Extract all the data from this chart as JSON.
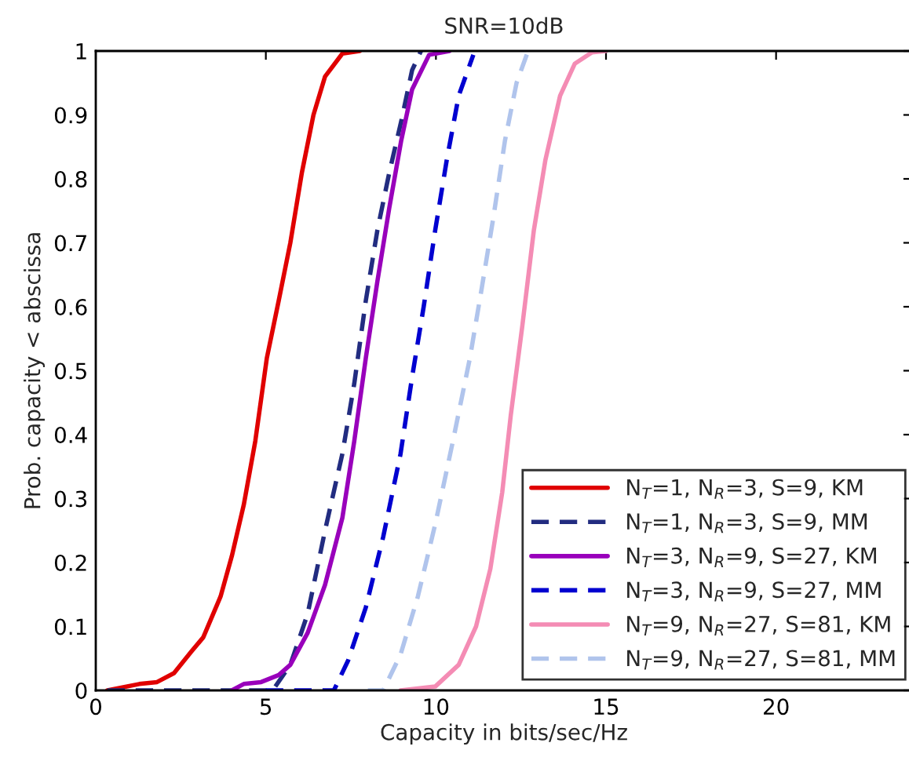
{
  "chart_data": {
    "type": "line",
    "title": "SNR=10dB",
    "xlabel": "Capacity in bits/sec/Hz",
    "ylabel": "Prob. capacity < abscissa",
    "xlim": [
      0,
      24
    ],
    "ylim": [
      0,
      1
    ],
    "xticks": [
      0,
      5,
      10,
      15,
      20
    ],
    "yticks": [
      0,
      {
        "value": 0.1,
        "label": "0.1"
      },
      {
        "value": 0.2,
        "label": "0.2"
      },
      {
        "value": 0.3,
        "label": "0.3"
      },
      {
        "value": 0.4,
        "label": "0.4"
      },
      {
        "value": 0.5,
        "label": "0.5"
      },
      {
        "value": 0.6,
        "label": "0.6"
      },
      {
        "value": 0.7,
        "label": "0.7"
      },
      {
        "value": 0.8,
        "label": "0.8"
      },
      {
        "value": 0.9,
        "label": "0.9"
      },
      1
    ],
    "grid": false,
    "legend": "bottom right",
    "marker": "none",
    "series": [
      {
        "name": "N$_{T}$=1, N$_{R}$=3, S=9, KM",
        "color": "#e00000",
        "line_style": "solid",
        "x": [
          0.34,
          1.28,
          1.8,
          2.3,
          2.8,
          3.16,
          3.67,
          4.0,
          4.35,
          4.69,
          5.03,
          5.38,
          5.72,
          6.06,
          6.4,
          6.74,
          7.25,
          7.76
        ],
        "values": [
          0,
          0.01,
          0.013,
          0.027,
          0.06,
          0.083,
          0.147,
          0.21,
          0.29,
          0.39,
          0.52,
          0.61,
          0.7,
          0.81,
          0.9,
          0.96,
          0.996,
          1
        ]
      },
      {
        "name": "N$_{T}$=1, N$_{R}$=3, S=9, MM",
        "color": "#222c80",
        "line_style": "dashed",
        "x": [
          0.34,
          5.2,
          5.72,
          6.23,
          6.74,
          7.25,
          7.6,
          7.94,
          8.28,
          8.63,
          8.98,
          9.3,
          9.56
        ],
        "values": [
          0,
          0,
          0.04,
          0.12,
          0.25,
          0.37,
          0.48,
          0.61,
          0.72,
          0.81,
          0.89,
          0.97,
          1
        ]
      },
      {
        "name": "N$_{T}$=3, N$_{R}$=9, S=27, KM",
        "color": "#9900bb",
        "line_style": "solid",
        "x": [
          4.0,
          4.35,
          4.86,
          5.38,
          5.72,
          6.23,
          6.74,
          7.25,
          7.6,
          7.94,
          8.28,
          8.63,
          8.98,
          9.3,
          9.8,
          10.4
        ],
        "values": [
          0,
          0.01,
          0.013,
          0.024,
          0.04,
          0.09,
          0.165,
          0.27,
          0.39,
          0.52,
          0.64,
          0.755,
          0.86,
          0.94,
          0.994,
          1
        ]
      },
      {
        "name": "N$_{T}$=3, N$_{R}$=9, S=27, MM",
        "color": "#0000d0",
        "line_style": "dashed",
        "x": [
          5.0,
          7.0,
          7.42,
          7.94,
          8.45,
          8.96,
          9.3,
          9.64,
          9.98,
          10.32,
          10.67,
          11.1
        ],
        "values": [
          0,
          0,
          0.047,
          0.13,
          0.24,
          0.37,
          0.49,
          0.6,
          0.72,
          0.83,
          0.93,
          0.994
        ]
      },
      {
        "name": "N$_{T}$=9, N$_{R}$=27, S=81, KM",
        "color": "#f48cb4",
        "line_style": "solid",
        "x": [
          8.96,
          9.98,
          10.67,
          11.18,
          11.6,
          11.95,
          12.2,
          12.54,
          12.88,
          13.22,
          13.65,
          14.08,
          14.59,
          15.0
        ],
        "values": [
          0,
          0.006,
          0.04,
          0.1,
          0.19,
          0.31,
          0.43,
          0.57,
          0.72,
          0.83,
          0.93,
          0.98,
          0.998,
          1
        ]
      },
      {
        "name": "N$_{T}$=9, N$_{R}$=27, S=81, MM",
        "color": "#b0c4ec",
        "line_style": "dashed",
        "x": [
          8.0,
          8.45,
          8.96,
          9.47,
          9.98,
          10.5,
          11.0,
          11.35,
          11.69,
          12.03,
          12.37,
          12.71
        ],
        "values": [
          0,
          0,
          0.056,
          0.147,
          0.26,
          0.39,
          0.52,
          0.63,
          0.74,
          0.86,
          0.95,
          1
        ]
      }
    ]
  }
}
